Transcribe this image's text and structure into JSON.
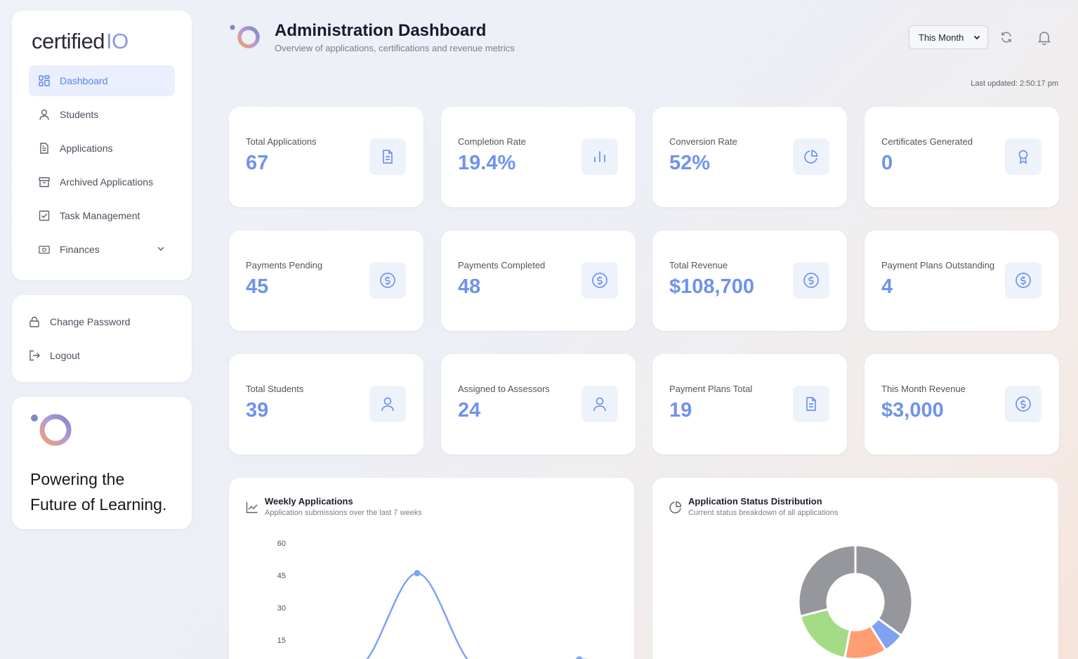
{
  "brand": {
    "name": "certified",
    "suffix": "IO"
  },
  "sidebar": {
    "items": [
      {
        "label": "Dashboard",
        "icon": "grid-icon",
        "active": true
      },
      {
        "label": "Students",
        "icon": "user-icon"
      },
      {
        "label": "Applications",
        "icon": "document-icon"
      },
      {
        "label": "Archived Applications",
        "icon": "archive-icon"
      },
      {
        "label": "Task Management",
        "icon": "checkbox-icon"
      },
      {
        "label": "Finances",
        "icon": "money-icon",
        "expandable": true
      }
    ],
    "account": [
      {
        "label": "Change Password",
        "icon": "lock-icon"
      },
      {
        "label": "Logout",
        "icon": "logout-icon"
      }
    ],
    "promo": {
      "line1": "Powering the",
      "line2": "Future of Learning."
    }
  },
  "header": {
    "title": "Administration Dashboard",
    "subtitle": "Overview of applications, certifications and revenue metrics",
    "period": "This Month",
    "last_updated": "Last updated: 2:50:17 pm"
  },
  "stats": [
    {
      "label": "Total Applications",
      "value": "67",
      "icon": "document-icon"
    },
    {
      "label": "Completion Rate",
      "value": "19.4%",
      "icon": "bar-chart-icon"
    },
    {
      "label": "Conversion Rate",
      "value": "52%",
      "icon": "pie-chart-icon"
    },
    {
      "label": "Certificates Generated",
      "value": "0",
      "icon": "award-icon"
    },
    {
      "label": "Payments Pending",
      "value": "45",
      "icon": "dollar-icon"
    },
    {
      "label": "Payments Completed",
      "value": "48",
      "icon": "dollar-icon"
    },
    {
      "label": "Total Revenue",
      "value": "$108,700",
      "icon": "dollar-icon"
    },
    {
      "label": "Payment Plans Outstanding",
      "value": "4",
      "icon": "dollar-icon"
    },
    {
      "label": "Total Students",
      "value": "39",
      "icon": "user-icon"
    },
    {
      "label": "Assigned to Assessors",
      "value": "24",
      "icon": "user-icon"
    },
    {
      "label": "Payment Plans Total",
      "value": "19",
      "icon": "document-icon"
    },
    {
      "label": "This Month Revenue",
      "value": "$3,000",
      "icon": "dollar-icon"
    }
  ],
  "charts": {
    "weekly": {
      "title": "Weekly Applications",
      "subtitle": "Application submissions over the last 7 weeks"
    },
    "status": {
      "title": "Application Status Distribution",
      "subtitle": "Current status breakdown of all applications"
    }
  },
  "chart_data": [
    {
      "type": "line",
      "title": "Weekly Applications",
      "subtitle": "Application submissions over the last 7 weeks",
      "ylim": [
        0,
        60
      ],
      "yticks": [
        15,
        30,
        45,
        60
      ],
      "color": "#7fa2f2",
      "series": [
        {
          "values": [
            2,
            4,
            46,
            4,
            0,
            6,
            1
          ]
        }
      ]
    },
    {
      "type": "pie",
      "title": "Application Status Distribution",
      "subtitle": "Current status breakdown of all applications",
      "slices": [
        {
          "value": 35,
          "color": "#96979c"
        },
        {
          "value": 6,
          "color": "#7fa2f2"
        },
        {
          "value": 12,
          "color": "#ff9e73"
        },
        {
          "value": 18,
          "color": "#a4db86"
        },
        {
          "value": 29,
          "color": "#96979c"
        }
      ]
    }
  ],
  "colors": {
    "accent": "#6f93ec",
    "active_bg": "#e9effd",
    "icon_bg": "#eef2fb"
  }
}
